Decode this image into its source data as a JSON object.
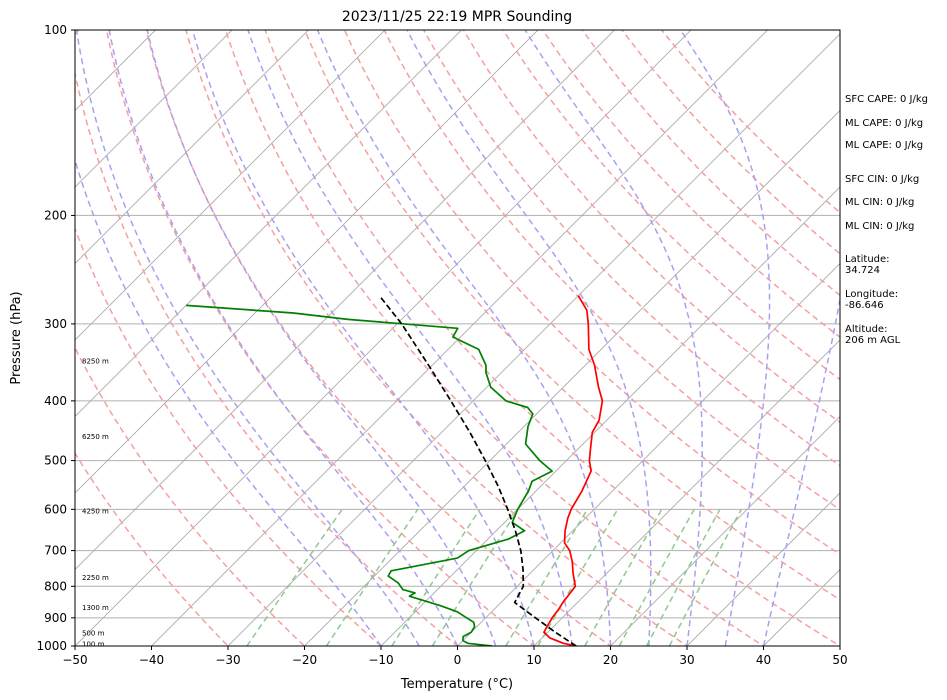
{
  "chart_data": {
    "type": "line",
    "subtype": "skew-t log-p",
    "title": "2023/11/25 22:19 MPR Sounding",
    "xlabel": "Temperature (°C)",
    "ylabel": "Pressure (hPa)",
    "xlim": [
      -50,
      50
    ],
    "ylim": [
      1000,
      100
    ],
    "yscale": "log",
    "x_ticks": [
      "−50",
      "−40",
      "−30",
      "−20",
      "−10",
      "0",
      "10",
      "20",
      "30",
      "40",
      "50"
    ],
    "y_ticks": [
      {
        "value": 100,
        "label": "100"
      },
      {
        "value": 200,
        "label": "200"
      },
      {
        "value": 300,
        "label": "300"
      },
      {
        "value": 400,
        "label": "400"
      },
      {
        "value": 500,
        "label": "500"
      },
      {
        "value": 600,
        "label": "600"
      },
      {
        "value": 700,
        "label": "700"
      },
      {
        "value": 800,
        "label": "800"
      },
      {
        "value": 900,
        "label": "900"
      },
      {
        "value": 1000,
        "label": "1000"
      }
    ],
    "height_labels": [
      {
        "label": "100 m",
        "p": 995
      },
      {
        "label": "500 m",
        "p": 955
      },
      {
        "label": "1300 m",
        "p": 868
      },
      {
        "label": "2250 m",
        "p": 775
      },
      {
        "label": "4250 m",
        "p": 605
      },
      {
        "label": "6250 m",
        "p": 458
      },
      {
        "label": "8250 m",
        "p": 345
      }
    ],
    "grid": true,
    "colors": {
      "temperature": "#ff0000",
      "dewpoint": "#008000",
      "parcel": "#000000",
      "isotherm": "#aaaaaa",
      "dry_adiabat": "#f4a0a0",
      "moist_adiabat": "#a8a0f0",
      "mixing_ratio": "#90c890"
    },
    "series": [
      {
        "key": "temperature",
        "points": [
          [
            1000,
            15.5
          ],
          [
            990,
            13.5
          ],
          [
            970,
            11
          ],
          [
            950,
            9.5
          ],
          [
            920,
            9
          ],
          [
            900,
            8.7
          ],
          [
            870,
            8.4
          ],
          [
            850,
            8.1
          ],
          [
            820,
            7.8
          ],
          [
            800,
            7.6
          ],
          [
            760,
            5.5
          ],
          [
            730,
            4
          ],
          [
            700,
            2.2
          ],
          [
            680,
            0.5
          ],
          [
            650,
            -1
          ],
          [
            620,
            -2.3
          ],
          [
            600,
            -3
          ],
          [
            560,
            -4
          ],
          [
            520,
            -5.4
          ],
          [
            500,
            -7
          ],
          [
            480,
            -8.3
          ],
          [
            450,
            -10.3
          ],
          [
            430,
            -11
          ],
          [
            400,
            -13.1
          ],
          [
            380,
            -15.4
          ],
          [
            350,
            -18.8
          ],
          [
            330,
            -21.6
          ],
          [
            300,
            -25
          ],
          [
            285,
            -27
          ],
          [
            270,
            -30
          ]
        ]
      },
      {
        "key": "dewpoint",
        "points": [
          [
            1000,
            4.5
          ],
          [
            990,
            1
          ],
          [
            980,
            0
          ],
          [
            965,
            -0.5
          ],
          [
            950,
            0
          ],
          [
            930,
            -0.3
          ],
          [
            915,
            -1
          ],
          [
            900,
            -2.5
          ],
          [
            880,
            -4.5
          ],
          [
            860,
            -7.5
          ],
          [
            840,
            -11
          ],
          [
            830,
            -12.8
          ],
          [
            820,
            -12.5
          ],
          [
            810,
            -14.5
          ],
          [
            790,
            -16
          ],
          [
            770,
            -18.2
          ],
          [
            755,
            -18.5
          ],
          [
            720,
            -11.5
          ],
          [
            700,
            -11
          ],
          [
            670,
            -7.3
          ],
          [
            650,
            -6.3
          ],
          [
            630,
            -9
          ],
          [
            600,
            -10
          ],
          [
            560,
            -11
          ],
          [
            540,
            -11.8
          ],
          [
            520,
            -10.5
          ],
          [
            500,
            -13.5
          ],
          [
            470,
            -17.5
          ],
          [
            440,
            -19.5
          ],
          [
            420,
            -20.5
          ],
          [
            410,
            -22
          ],
          [
            400,
            -25.7
          ],
          [
            380,
            -29.5
          ],
          [
            360,
            -32
          ],
          [
            350,
            -33
          ],
          [
            330,
            -36
          ],
          [
            315,
            -41
          ],
          [
            305,
            -41.5
          ],
          [
            295,
            -57
          ],
          [
            288,
            -65
          ],
          [
            280,
            -80
          ]
        ]
      },
      {
        "key": "parcel",
        "points": [
          [
            1000,
            15.5
          ],
          [
            950,
            11
          ],
          [
            900,
            6.5
          ],
          [
            850,
            1.8
          ],
          [
            800,
            0.8
          ],
          [
            750,
            -1.5
          ],
          [
            700,
            -4.2
          ],
          [
            650,
            -7.5
          ],
          [
            600,
            -11.3
          ],
          [
            550,
            -15.6
          ],
          [
            500,
            -20.6
          ],
          [
            450,
            -26.3
          ],
          [
            400,
            -32.9
          ],
          [
            350,
            -40.5
          ],
          [
            300,
            -49.4
          ],
          [
            270,
            -56
          ]
        ]
      }
    ],
    "isotherms_C": [
      -150,
      -140,
      -130,
      -120,
      -110,
      -100,
      -90,
      -80,
      -70,
      -60,
      -50,
      -40,
      -30,
      -20,
      -10,
      0,
      10,
      20,
      30,
      40,
      50
    ],
    "dry_adiabats_C": [
      -30,
      -20,
      -10,
      0,
      10,
      20,
      30,
      40,
      50,
      60,
      70,
      80,
      90,
      100,
      110,
      120,
      130,
      140,
      150
    ],
    "moist_adiabats_C": [
      -10,
      -5,
      0,
      5,
      10,
      15,
      20,
      25,
      30,
      35,
      40
    ],
    "mixing_ratio_lines_gkg": [
      0.4,
      1,
      2,
      3,
      6,
      8,
      12,
      16,
      20,
      24
    ],
    "annotations": [
      "SFC CAPE: 0 J/kg",
      "ML CAPE: 0 J/kg",
      "ML CAPE: 0 J/kg",
      "SFC CIN: 0 J/kg",
      "ML CIN: 0 J/kg",
      "ML CIN: 0 J/kg",
      "Latitude:",
      "34.724",
      "Longitude:",
      "-86.646",
      "Altitude:",
      "206 m AGL"
    ]
  }
}
